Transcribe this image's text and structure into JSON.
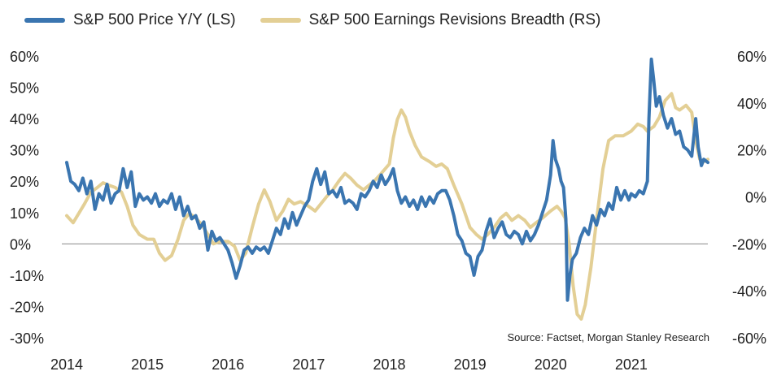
{
  "chart_data": {
    "type": "line",
    "source": "Source: Factset, Morgan Stanley Research",
    "x_ticks": [
      "2014",
      "2015",
      "2016",
      "2017",
      "2018",
      "2019",
      "2020",
      "2021"
    ],
    "x_range": [
      2014.0,
      2021.95
    ],
    "left_axis": {
      "range": [
        -30,
        60
      ],
      "ticks": [
        -30,
        -20,
        -10,
        0,
        10,
        20,
        30,
        40,
        50,
        60
      ],
      "tick_labels": [
        "-30%",
        "-20%",
        "-10%",
        "0%",
        "10%",
        "20%",
        "30%",
        "40%",
        "50%",
        "60%"
      ]
    },
    "right_axis": {
      "range": [
        -60,
        60
      ],
      "ticks": [
        -60,
        -40,
        -20,
        0,
        20,
        40,
        60
      ],
      "tick_labels": [
        "-60%",
        "-40%",
        "-20%",
        "0%",
        "20%",
        "40%",
        "60%"
      ]
    },
    "zero_line": true,
    "legend_position": "top",
    "series": [
      {
        "name": "S&P 500 Price Y/Y (LS)",
        "axis": "left",
        "color": "#3a75b0",
        "points": [
          [
            2014.0,
            26
          ],
          [
            2014.05,
            20
          ],
          [
            2014.1,
            19
          ],
          [
            2014.15,
            17
          ],
          [
            2014.2,
            21
          ],
          [
            2014.25,
            16
          ],
          [
            2014.3,
            20
          ],
          [
            2014.35,
            11
          ],
          [
            2014.4,
            16
          ],
          [
            2014.45,
            14
          ],
          [
            2014.5,
            19
          ],
          [
            2014.55,
            13
          ],
          [
            2014.6,
            16
          ],
          [
            2014.65,
            17
          ],
          [
            2014.7,
            24
          ],
          [
            2014.75,
            18
          ],
          [
            2014.8,
            23
          ],
          [
            2014.85,
            12
          ],
          [
            2014.9,
            16
          ],
          [
            2014.95,
            14
          ],
          [
            2015.0,
            15
          ],
          [
            2015.05,
            13
          ],
          [
            2015.1,
            16
          ],
          [
            2015.15,
            12
          ],
          [
            2015.2,
            14
          ],
          [
            2015.25,
            13
          ],
          [
            2015.3,
            16
          ],
          [
            2015.35,
            11
          ],
          [
            2015.4,
            15
          ],
          [
            2015.45,
            9
          ],
          [
            2015.5,
            12
          ],
          [
            2015.55,
            8
          ],
          [
            2015.6,
            9
          ],
          [
            2015.65,
            5
          ],
          [
            2015.7,
            7
          ],
          [
            2015.75,
            -2
          ],
          [
            2015.8,
            4
          ],
          [
            2015.85,
            1
          ],
          [
            2015.9,
            2
          ],
          [
            2015.95,
            0
          ],
          [
            2016.0,
            -2
          ],
          [
            2016.05,
            -6
          ],
          [
            2016.1,
            -11
          ],
          [
            2016.15,
            -7
          ],
          [
            2016.2,
            -2
          ],
          [
            2016.25,
            -1
          ],
          [
            2016.3,
            -3
          ],
          [
            2016.35,
            -1
          ],
          [
            2016.4,
            -2
          ],
          [
            2016.45,
            -1
          ],
          [
            2016.5,
            -3
          ],
          [
            2016.55,
            1
          ],
          [
            2016.6,
            5
          ],
          [
            2016.65,
            3
          ],
          [
            2016.7,
            8
          ],
          [
            2016.75,
            5
          ],
          [
            2016.8,
            10
          ],
          [
            2016.85,
            6
          ],
          [
            2016.9,
            9
          ],
          [
            2016.95,
            12
          ],
          [
            2017.0,
            14
          ],
          [
            2017.05,
            20
          ],
          [
            2017.1,
            24
          ],
          [
            2017.15,
            19
          ],
          [
            2017.2,
            23
          ],
          [
            2017.25,
            16
          ],
          [
            2017.3,
            17
          ],
          [
            2017.35,
            15
          ],
          [
            2017.4,
            18
          ],
          [
            2017.45,
            13
          ],
          [
            2017.5,
            14
          ],
          [
            2017.55,
            13
          ],
          [
            2017.6,
            11
          ],
          [
            2017.65,
            16
          ],
          [
            2017.7,
            15
          ],
          [
            2017.75,
            17
          ],
          [
            2017.8,
            20
          ],
          [
            2017.85,
            18
          ],
          [
            2017.9,
            22
          ],
          [
            2017.95,
            19
          ],
          [
            2018.0,
            21
          ],
          [
            2018.05,
            24
          ],
          [
            2018.1,
            17
          ],
          [
            2018.15,
            13
          ],
          [
            2018.2,
            15
          ],
          [
            2018.25,
            12
          ],
          [
            2018.3,
            14
          ],
          [
            2018.35,
            11
          ],
          [
            2018.4,
            15
          ],
          [
            2018.45,
            12
          ],
          [
            2018.5,
            15
          ],
          [
            2018.55,
            13
          ],
          [
            2018.6,
            16
          ],
          [
            2018.65,
            17
          ],
          [
            2018.7,
            17
          ],
          [
            2018.75,
            14
          ],
          [
            2018.8,
            9
          ],
          [
            2018.85,
            3
          ],
          [
            2018.9,
            1
          ],
          [
            2018.95,
            -3
          ],
          [
            2019.0,
            -4
          ],
          [
            2019.05,
            -10
          ],
          [
            2019.1,
            -4
          ],
          [
            2019.15,
            -2
          ],
          [
            2019.2,
            4
          ],
          [
            2019.25,
            8
          ],
          [
            2019.3,
            2
          ],
          [
            2019.35,
            5
          ],
          [
            2019.4,
            7
          ],
          [
            2019.45,
            3
          ],
          [
            2019.5,
            2
          ],
          [
            2019.55,
            4
          ],
          [
            2019.6,
            3
          ],
          [
            2019.65,
            0
          ],
          [
            2019.7,
            4
          ],
          [
            2019.75,
            1
          ],
          [
            2019.8,
            3
          ],
          [
            2019.85,
            6
          ],
          [
            2019.9,
            10
          ],
          [
            2019.95,
            14
          ],
          [
            2020.0,
            22
          ],
          [
            2020.03,
            33
          ],
          [
            2020.06,
            27
          ],
          [
            2020.1,
            24
          ],
          [
            2020.13,
            20
          ],
          [
            2020.16,
            18
          ],
          [
            2020.19,
            8
          ],
          [
            2020.21,
            -18
          ],
          [
            2020.24,
            -10
          ],
          [
            2020.27,
            -5
          ],
          [
            2020.32,
            -3
          ],
          [
            2020.37,
            2
          ],
          [
            2020.42,
            5
          ],
          [
            2020.47,
            3
          ],
          [
            2020.52,
            9
          ],
          [
            2020.57,
            6
          ],
          [
            2020.62,
            11
          ],
          [
            2020.67,
            9
          ],
          [
            2020.72,
            13
          ],
          [
            2020.77,
            11
          ],
          [
            2020.82,
            18
          ],
          [
            2020.87,
            14
          ],
          [
            2020.92,
            17
          ],
          [
            2020.97,
            14
          ],
          [
            2021.0,
            16
          ],
          [
            2021.05,
            15
          ],
          [
            2021.1,
            17
          ],
          [
            2021.15,
            16
          ],
          [
            2021.2,
            20
          ],
          [
            2021.22,
            40
          ],
          [
            2021.25,
            59
          ],
          [
            2021.28,
            52
          ],
          [
            2021.31,
            44
          ],
          [
            2021.35,
            47
          ],
          [
            2021.4,
            41
          ],
          [
            2021.45,
            37
          ],
          [
            2021.5,
            40
          ],
          [
            2021.55,
            35
          ],
          [
            2021.6,
            36
          ],
          [
            2021.65,
            31
          ],
          [
            2021.7,
            30
          ],
          [
            2021.75,
            28
          ],
          [
            2021.8,
            40
          ],
          [
            2021.83,
            31
          ],
          [
            2021.87,
            25
          ],
          [
            2021.9,
            27
          ],
          [
            2021.95,
            26
          ]
        ]
      },
      {
        "name": "S&P 500 Earnings Revisions Breadth (RS)",
        "axis": "right",
        "color": "#e3cf95",
        "points": [
          [
            2014.0,
            -8
          ],
          [
            2014.08,
            -11
          ],
          [
            2014.15,
            -7
          ],
          [
            2014.22,
            -3
          ],
          [
            2014.3,
            2
          ],
          [
            2014.38,
            4
          ],
          [
            2014.45,
            6
          ],
          [
            2014.52,
            5
          ],
          [
            2014.6,
            4
          ],
          [
            2014.68,
            2
          ],
          [
            2014.75,
            -4
          ],
          [
            2014.82,
            -12
          ],
          [
            2014.9,
            -16
          ],
          [
            2015.0,
            -18
          ],
          [
            2015.08,
            -18
          ],
          [
            2015.15,
            -24
          ],
          [
            2015.22,
            -27
          ],
          [
            2015.3,
            -25
          ],
          [
            2015.38,
            -18
          ],
          [
            2015.45,
            -10
          ],
          [
            2015.52,
            -7
          ],
          [
            2015.6,
            -9
          ],
          [
            2015.68,
            -12
          ],
          [
            2015.75,
            -16
          ],
          [
            2015.82,
            -20
          ],
          [
            2015.9,
            -19
          ],
          [
            2016.0,
            -19
          ],
          [
            2016.08,
            -21
          ],
          [
            2016.15,
            -27
          ],
          [
            2016.22,
            -24
          ],
          [
            2016.3,
            -13
          ],
          [
            2016.38,
            -3
          ],
          [
            2016.45,
            3
          ],
          [
            2016.52,
            -2
          ],
          [
            2016.6,
            -10
          ],
          [
            2016.68,
            -6
          ],
          [
            2016.75,
            -1
          ],
          [
            2016.82,
            -3
          ],
          [
            2016.9,
            -2
          ],
          [
            2017.0,
            -4
          ],
          [
            2017.08,
            -6
          ],
          [
            2017.15,
            -3
          ],
          [
            2017.22,
            0
          ],
          [
            2017.3,
            3
          ],
          [
            2017.38,
            7
          ],
          [
            2017.45,
            10
          ],
          [
            2017.52,
            8
          ],
          [
            2017.6,
            5
          ],
          [
            2017.68,
            3
          ],
          [
            2017.75,
            5
          ],
          [
            2017.82,
            7
          ],
          [
            2017.9,
            10
          ],
          [
            2018.0,
            14
          ],
          [
            2018.05,
            25
          ],
          [
            2018.1,
            33
          ],
          [
            2018.15,
            37
          ],
          [
            2018.2,
            34
          ],
          [
            2018.25,
            28
          ],
          [
            2018.32,
            22
          ],
          [
            2018.4,
            17
          ],
          [
            2018.5,
            15
          ],
          [
            2018.58,
            13
          ],
          [
            2018.65,
            14
          ],
          [
            2018.72,
            12
          ],
          [
            2018.8,
            5
          ],
          [
            2018.9,
            -3
          ],
          [
            2019.0,
            -13
          ],
          [
            2019.08,
            -16
          ],
          [
            2019.15,
            -18
          ],
          [
            2019.22,
            -16
          ],
          [
            2019.3,
            -13
          ],
          [
            2019.38,
            -9
          ],
          [
            2019.45,
            -7
          ],
          [
            2019.52,
            -10
          ],
          [
            2019.6,
            -8
          ],
          [
            2019.68,
            -10
          ],
          [
            2019.75,
            -13
          ],
          [
            2019.82,
            -11
          ],
          [
            2019.9,
            -9
          ],
          [
            2020.0,
            -6
          ],
          [
            2020.08,
            -4
          ],
          [
            2020.13,
            -6
          ],
          [
            2020.18,
            -9
          ],
          [
            2020.23,
            -20
          ],
          [
            2020.28,
            -38
          ],
          [
            2020.33,
            -50
          ],
          [
            2020.38,
            -52
          ],
          [
            2020.43,
            -46
          ],
          [
            2020.5,
            -30
          ],
          [
            2020.57,
            -10
          ],
          [
            2020.65,
            12
          ],
          [
            2020.72,
            24
          ],
          [
            2020.8,
            26
          ],
          [
            2020.9,
            26
          ],
          [
            2021.0,
            28
          ],
          [
            2021.08,
            31
          ],
          [
            2021.15,
            30
          ],
          [
            2021.2,
            28
          ],
          [
            2021.28,
            30
          ],
          [
            2021.35,
            34
          ],
          [
            2021.42,
            41
          ],
          [
            2021.5,
            44
          ],
          [
            2021.55,
            38
          ],
          [
            2021.6,
            37
          ],
          [
            2021.68,
            39
          ],
          [
            2021.75,
            36
          ],
          [
            2021.8,
            24
          ],
          [
            2021.85,
            16
          ],
          [
            2021.9,
            15
          ],
          [
            2021.95,
            16
          ]
        ]
      }
    ]
  }
}
